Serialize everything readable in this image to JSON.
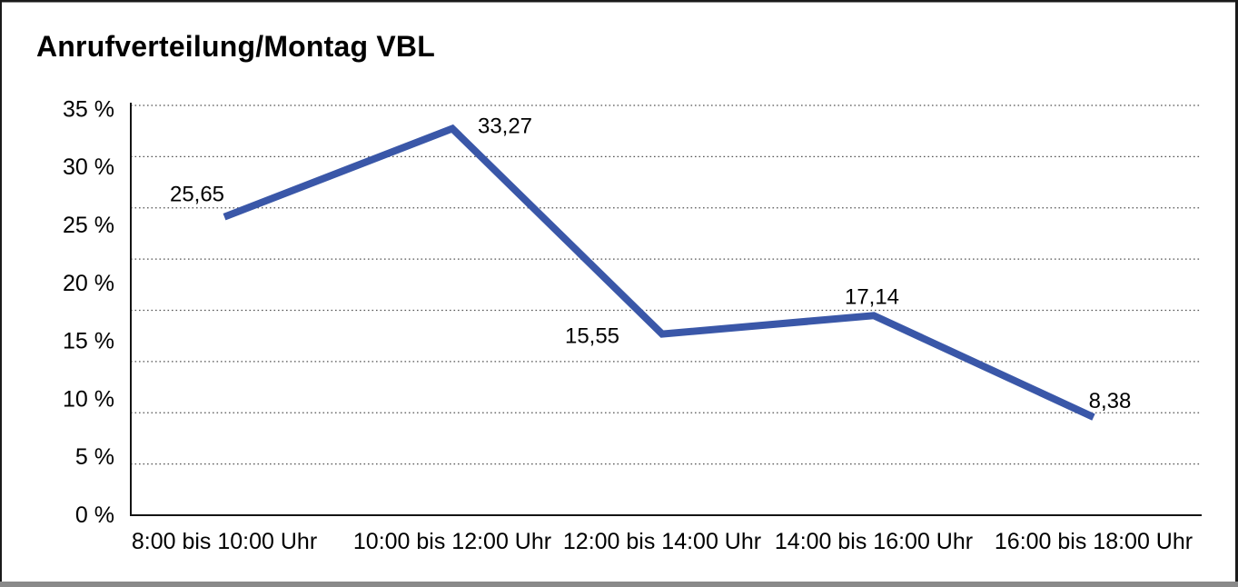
{
  "title": "Anrufverteilung/Montag VBL",
  "colors": {
    "line": "#3a57a8",
    "text": "#000000",
    "grid": "#555555",
    "axis": "#141414",
    "frame_border": "#1a1a1a",
    "frame_bottom_edge": "#8a8a8a",
    "background": "#ffffff"
  },
  "chart_data": {
    "type": "line",
    "title": "Anrufverteilung/Montag VBL",
    "categories": [
      "8:00 bis 10:00 Uhr",
      "10:00 bis 12:00 Uhr",
      "12:00 bis 14:00 Uhr",
      "14:00 bis 16:00 Uhr",
      "16:00 bis 18:00 Uhr"
    ],
    "series": [
      {
        "name": "Anrufverteilung Montag VBL",
        "values": [
          25.65,
          33.27,
          15.55,
          17.14,
          8.38
        ],
        "point_labels": [
          "25,65",
          "33,27",
          "15,55",
          "17,14",
          "8,38"
        ],
        "color": "#3a57a8"
      }
    ],
    "xlabel": "",
    "ylabel": "",
    "y_ticks": [
      "35 %",
      "30 %",
      "25 %",
      "20 %",
      "15 %",
      "10 %",
      "5 %",
      "0 %"
    ],
    "y_tick_values": [
      35,
      30,
      25,
      20,
      15,
      10,
      5,
      0
    ],
    "ylim": [
      0,
      35
    ],
    "grid": "horizontal-dotted",
    "gridline_count": 9,
    "legend": "none",
    "unit": "%"
  }
}
